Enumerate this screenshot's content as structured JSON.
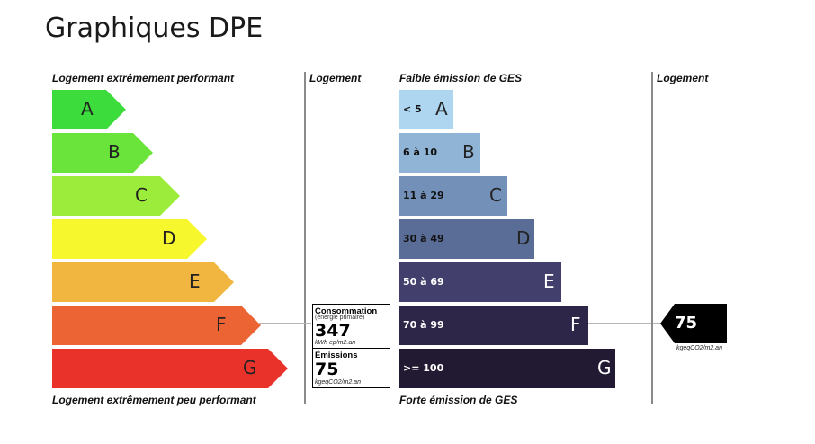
{
  "page": {
    "title": "Graphiques DPE"
  },
  "dpe": {
    "header_top": "Logement extrêmement performant",
    "header_bottom": "Logement extrêmement peu performant",
    "column_header": "Logement",
    "classes": [
      {
        "letter": "A",
        "color": "#3ddc3d"
      },
      {
        "letter": "B",
        "color": "#6ae33a"
      },
      {
        "letter": "C",
        "color": "#9ced3b"
      },
      {
        "letter": "D",
        "color": "#f7f72e"
      },
      {
        "letter": "E",
        "color": "#f0b640"
      },
      {
        "letter": "F",
        "color": "#ec6434"
      },
      {
        "letter": "G",
        "color": "#e9332a"
      }
    ],
    "current_class": "F"
  },
  "ges": {
    "header_top": "Faible émission de GES",
    "header_bottom": "Forte émission de GES",
    "column_header": "Logement",
    "classes": [
      {
        "letter": "A",
        "range": "< 5",
        "color": "#aed6f1"
      },
      {
        "letter": "B",
        "range": "6 à 10",
        "color": "#8fb4d6"
      },
      {
        "letter": "C",
        "range": "11 à 29",
        "color": "#7391b8"
      },
      {
        "letter": "D",
        "range": "30 à 49",
        "color": "#5a6d97"
      },
      {
        "letter": "E",
        "range": "50 à 69",
        "color": "#433f6c"
      },
      {
        "letter": "F",
        "range": "70 à 99",
        "color": "#2e2649"
      },
      {
        "letter": "G",
        "range": ">= 100",
        "color": "#221a33"
      }
    ],
    "current_class": "F"
  },
  "consumption": {
    "label": "Consommation",
    "sublabel": "(énergie primaire)",
    "value": "347",
    "unit": "kWh ep/m2.an"
  },
  "emissions": {
    "label": "Émissions",
    "value": "75",
    "unit": "kgeqCO2/m2.an"
  },
  "ges_marker": {
    "value": "75",
    "unit": "kgeqCO2/m2.an",
    "color": "#000000"
  },
  "chart_data": [
    {
      "type": "bar",
      "categories": [
        "A",
        "B",
        "C",
        "D",
        "E",
        "F",
        "G"
      ],
      "values": [
        1,
        2,
        3,
        4,
        5,
        6,
        7
      ],
      "title": "",
      "top_label": "Logement extrêmement performant",
      "bottom_label": "Logement extrêmement peu performant",
      "highlight": "F",
      "reading": {
        "label": "Consommation",
        "value": 347,
        "unit": "kWh ep/m2.an"
      }
    },
    {
      "type": "bar",
      "categories": [
        "A",
        "B",
        "C",
        "D",
        "E",
        "F",
        "G"
      ],
      "ranges": [
        "< 5",
        "6 à 10",
        "11 à 29",
        "30 à 49",
        "50 à 69",
        "70 à 99",
        ">= 100"
      ],
      "values": [
        1,
        2,
        3,
        4,
        5,
        6,
        7
      ],
      "title": "",
      "top_label": "Faible émission de GES",
      "bottom_label": "Forte émission de GES",
      "highlight": "F",
      "reading": {
        "label": "Émissions",
        "value": 75,
        "unit": "kgeqCO2/m2.an"
      }
    }
  ]
}
